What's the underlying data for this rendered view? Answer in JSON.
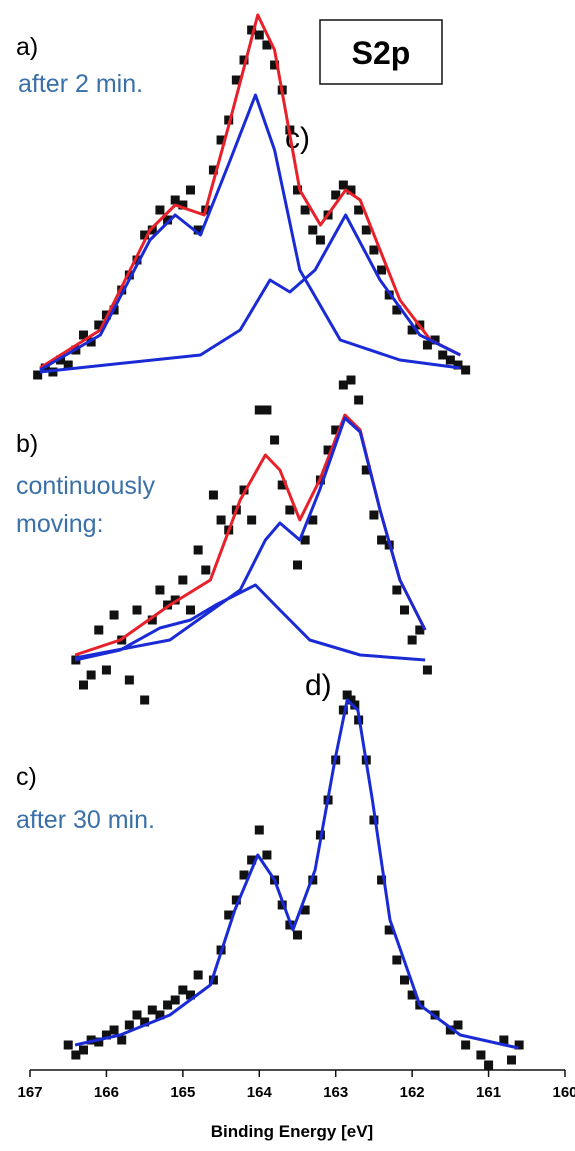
{
  "chart_data": {
    "type": "line",
    "xlabel": "Binding Energy [eV]",
    "xlim": [
      167,
      160
    ],
    "xticks": [
      167,
      166,
      165,
      164,
      163,
      162,
      161,
      160
    ],
    "ylim": [
      0,
      106
    ],
    "annotations": [
      "S2p",
      "a)",
      "after 2 min.",
      "c)",
      "b)",
      "continuously",
      "moving:",
      "d)",
      "c)",
      "after 30 min."
    ],
    "series": [
      {
        "type": "scatter",
        "color": "#111111",
        "x": [
          166.9,
          166.8,
          166.7,
          166.6,
          166.5,
          166.4,
          166.3,
          166.2,
          166.1,
          166.0,
          165.9,
          165.8,
          165.7,
          165.6,
          165.5,
          165.4,
          165.3,
          165.2,
          165.1,
          165.0,
          164.9,
          164.8,
          164.7,
          164.6,
          164.5,
          164.4,
          164.3,
          164.2,
          164.1,
          164.0,
          163.9,
          163.8,
          163.7,
          163.6,
          163.5,
          163.4,
          163.3,
          163.2,
          163.1,
          163.0,
          162.9,
          162.8,
          162.7,
          162.6,
          162.5,
          162.4,
          162.3,
          162.2,
          162.0,
          161.9,
          161.8,
          161.7,
          161.6,
          161.5,
          161.4,
          161.3
        ],
        "values": [
          69.5,
          70.2,
          69.8,
          71.0,
          70.5,
          72.0,
          73.5,
          72.8,
          74.5,
          75.5,
          76.0,
          78.0,
          79.5,
          81.0,
          83.5,
          84.0,
          86.0,
          85.0,
          87.0,
          86.5,
          88.0,
          84.0,
          86.0,
          90.0,
          93.0,
          95.0,
          99.0,
          101.0,
          104.0,
          103.5,
          102.5,
          100.5,
          98.0,
          94.0,
          88.0,
          86.0,
          84.0,
          83.0,
          85.5,
          87.5,
          88.5,
          88.0,
          86.0,
          84.0,
          82.0,
          80.0,
          77.5,
          76.0,
          74.0,
          74.5,
          72.5,
          73.0,
          71.5,
          71.0,
          70.5,
          70.0
        ]
      },
      {
        "type": "line",
        "color": "#e8202a",
        "x": [
          166.87,
          166.08,
          165.43,
          165.1,
          164.72,
          164.38,
          164.02,
          163.8,
          163.47,
          163.2,
          162.87,
          162.68,
          162.16,
          161.76,
          161.37
        ],
        "values": [
          70.2,
          74.0,
          84.0,
          86.5,
          85.5,
          95.0,
          105.5,
          102.0,
          88.0,
          84.5,
          88.0,
          87.0,
          77.0,
          73.0,
          71.5
        ]
      },
      {
        "type": "line",
        "color": "#1a2bd6",
        "x": [
          166.87,
          166.08,
          165.43,
          165.1,
          164.77,
          164.38,
          164.05,
          163.8,
          163.47,
          162.94,
          162.16,
          161.37
        ],
        "values": [
          70.0,
          73.5,
          83.0,
          85.5,
          83.5,
          91.0,
          97.5,
          92.0,
          80.0,
          73.0,
          71.0,
          70.2
        ]
      },
      {
        "type": "line",
        "color": "#1a2bd6",
        "x": [
          166.87,
          164.77,
          164.25,
          163.86,
          163.6,
          163.27,
          162.87,
          162.42,
          161.9,
          161.37
        ],
        "values": [
          69.8,
          71.5,
          74.0,
          79.0,
          77.8,
          80.0,
          85.5,
          79.0,
          73.5,
          71.5
        ]
      },
      {
        "type": "scatter",
        "color": "#111111",
        "x": [
          166.4,
          166.3,
          166.2,
          166.1,
          166.0,
          165.9,
          165.8,
          165.7,
          165.6,
          165.5,
          165.4,
          165.3,
          165.2,
          165.1,
          165.0,
          164.9,
          164.8,
          164.7,
          164.6,
          164.5,
          164.4,
          164.3,
          164.2,
          164.1,
          164.0,
          163.9,
          163.8,
          163.7,
          163.6,
          163.5,
          163.4,
          163.3,
          163.2,
          163.1,
          163.0,
          162.9,
          162.8,
          162.7,
          162.6,
          162.5,
          162.4,
          162.3,
          162.2,
          162.1,
          162.0,
          161.9,
          161.8
        ],
        "values": [
          41.0,
          38.5,
          39.5,
          44.0,
          40.0,
          45.5,
          43.0,
          39.0,
          46.0,
          37.0,
          45.0,
          48.0,
          46.5,
          47.0,
          49.0,
          46.0,
          52.0,
          50.0,
          57.5,
          55.0,
          54.0,
          56.0,
          58.0,
          55.0,
          66.0,
          66.0,
          63.0,
          58.5,
          56.0,
          50.5,
          53.0,
          55.0,
          59.0,
          62.0,
          64.0,
          68.5,
          69.0,
          67.0,
          60.0,
          55.5,
          53.0,
          52.5,
          48.0,
          46.0,
          43.0,
          44.0,
          40.0
        ]
      },
      {
        "type": "line",
        "color": "#e8202a",
        "x": [
          166.41,
          165.82,
          165.17,
          164.64,
          164.25,
          163.92,
          163.73,
          163.47,
          163.21,
          162.88,
          162.68,
          162.42,
          162.16,
          161.83
        ],
        "values": [
          41.5,
          43.0,
          46.5,
          49.0,
          57.0,
          61.5,
          60.0,
          55.0,
          59.0,
          65.5,
          64.0,
          56.0,
          49.0,
          44.0
        ]
      },
      {
        "type": "line",
        "color": "#1a2bd6",
        "x": [
          166.41,
          165.17,
          164.25,
          163.92,
          163.73,
          163.47,
          163.21,
          162.88,
          162.68,
          162.42,
          162.16,
          161.83
        ],
        "values": [
          41.2,
          43.0,
          48.0,
          53.0,
          54.7,
          53.0,
          58.0,
          65.2,
          63.8,
          56.0,
          49.0,
          44.0
        ]
      },
      {
        "type": "line",
        "color": "#1a2bd6",
        "x": [
          166.41,
          165.82,
          165.3,
          164.9,
          164.57,
          164.05,
          163.73,
          163.34,
          162.68,
          161.83
        ],
        "values": [
          41.0,
          42.0,
          44.2,
          45.0,
          46.5,
          48.5,
          46.0,
          43.0,
          41.5,
          41.0
        ]
      },
      {
        "type": "scatter",
        "color": "#111111",
        "x": [
          166.5,
          166.4,
          166.3,
          166.2,
          166.1,
          166.0,
          165.9,
          165.8,
          165.7,
          165.6,
          165.5,
          165.4,
          165.3,
          165.2,
          165.1,
          165.0,
          164.9,
          164.8,
          164.6,
          164.5,
          164.4,
          164.3,
          164.2,
          164.1,
          164.0,
          163.9,
          163.8,
          163.7,
          163.6,
          163.5,
          163.4,
          163.3,
          163.2,
          163.1,
          163.0,
          162.9,
          162.85,
          162.8,
          162.75,
          162.7,
          162.6,
          162.5,
          162.4,
          162.3,
          162.2,
          162.1,
          162.0,
          161.9,
          161.7,
          161.5,
          161.4,
          161.3,
          161.1,
          161.0,
          160.8,
          160.7,
          160.6
        ],
        "values": [
          2.5,
          1.5,
          2.0,
          3.0,
          2.8,
          3.5,
          4.0,
          3.0,
          4.5,
          5.5,
          4.8,
          6.0,
          5.5,
          6.5,
          7.0,
          8.0,
          7.5,
          9.5,
          9.0,
          12.0,
          15.5,
          17.0,
          19.5,
          21.0,
          24.0,
          21.5,
          19.0,
          16.5,
          14.5,
          13.5,
          16.0,
          19.0,
          23.5,
          27.0,
          31.0,
          36.0,
          37.5,
          37.0,
          36.5,
          35.0,
          31.0,
          25.0,
          19.0,
          14.0,
          11.0,
          9.0,
          7.5,
          6.5,
          5.5,
          4.0,
          4.5,
          2.5,
          1.5,
          0.5,
          3.0,
          1.0,
          2.5
        ]
      },
      {
        "type": "line",
        "color": "#1a2bd6",
        "x": [
          166.41,
          165.82,
          165.17,
          164.64,
          164.32,
          164.02,
          163.8,
          163.56,
          163.27,
          163.01,
          162.85,
          162.71,
          162.52,
          162.29,
          161.9,
          161.37,
          160.61
        ],
        "values": [
          2.5,
          3.5,
          5.5,
          8.5,
          16.0,
          21.5,
          19.0,
          14.0,
          20.0,
          31.0,
          37.0,
          36.0,
          27.0,
          15.0,
          6.5,
          3.5,
          2.2
        ]
      }
    ]
  }
}
